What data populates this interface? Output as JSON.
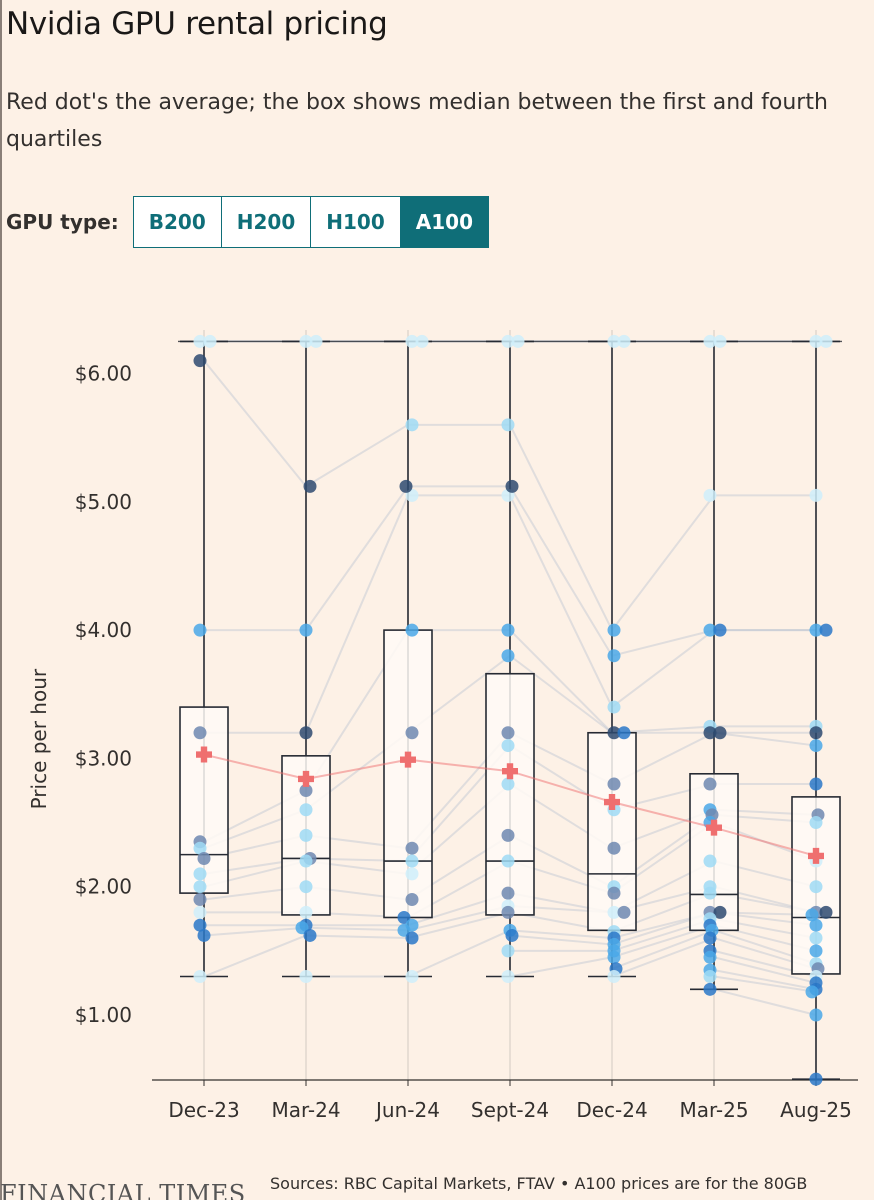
{
  "title": "Nvidia GPU rental pricing",
  "subtitle": "Red dot's the average; the box shows median between the first and fourth quartiles",
  "selector": {
    "label": "GPU type:",
    "options": [
      "B200",
      "H200",
      "H100",
      "A100"
    ],
    "active": "A100"
  },
  "colors": {
    "accent": "#0f6e78",
    "mean": "#ef6f6f",
    "dots": [
      "#cfeefa",
      "#9fdaf5",
      "#4aa8e8",
      "#2a78c8",
      "#6e88b0",
      "#2e4a70"
    ]
  },
  "chart_data": {
    "type": "box",
    "title": "Nvidia GPU rental pricing",
    "ylabel": "Price per hour",
    "xlabel": "",
    "ylim": [
      0.5,
      6.3
    ],
    "yticks": [
      1,
      2,
      3,
      4,
      5,
      6
    ],
    "ytick_labels": [
      "$1.00",
      "$2.00",
      "$3.00",
      "$4.00",
      "$5.00",
      "$6.00"
    ],
    "categories": [
      "Dec-23",
      "Mar-24",
      "Jun-24",
      "Sept-24",
      "Dec-24",
      "Mar-25",
      "Aug-25"
    ],
    "boxes": [
      {
        "min": 1.3,
        "q1": 1.95,
        "median": 2.25,
        "q3": 3.4,
        "max": 6.25,
        "mean": 3.03
      },
      {
        "min": 1.3,
        "q1": 1.78,
        "median": 2.22,
        "q3": 3.02,
        "max": 6.25,
        "mean": 2.84
      },
      {
        "min": 1.3,
        "q1": 1.76,
        "median": 2.2,
        "q3": 4.0,
        "max": 6.25,
        "mean": 2.99
      },
      {
        "min": 1.3,
        "q1": 1.78,
        "median": 2.2,
        "q3": 3.66,
        "max": 6.25,
        "mean": 2.9
      },
      {
        "min": 1.3,
        "q1": 1.66,
        "median": 2.1,
        "q3": 3.2,
        "max": 6.25,
        "mean": 2.66
      },
      {
        "min": 1.2,
        "q1": 1.66,
        "median": 1.94,
        "q3": 2.88,
        "max": 6.25,
        "mean": 2.46
      },
      {
        "min": 0.5,
        "q1": 1.32,
        "median": 1.76,
        "q3": 2.7,
        "max": 6.25,
        "mean": 2.24
      }
    ],
    "points": [
      [
        [
          6.25,
          0
        ],
        [
          6.25,
          0
        ],
        [
          6.1,
          5
        ],
        [
          4.0,
          2
        ],
        [
          3.2,
          4
        ],
        [
          2.35,
          4
        ],
        [
          2.3,
          1
        ],
        [
          2.22,
          4
        ],
        [
          2.1,
          1
        ],
        [
          2.0,
          1
        ],
        [
          1.9,
          4
        ],
        [
          1.8,
          0
        ],
        [
          1.7,
          3
        ],
        [
          1.62,
          3
        ],
        [
          1.3,
          0
        ]
      ],
      [
        [
          6.25,
          0
        ],
        [
          6.25,
          0
        ],
        [
          5.12,
          5
        ],
        [
          4.0,
          2
        ],
        [
          3.2,
          5
        ],
        [
          2.75,
          4
        ],
        [
          2.6,
          1
        ],
        [
          2.4,
          1
        ],
        [
          2.22,
          4
        ],
        [
          2.2,
          1
        ],
        [
          2.0,
          1
        ],
        [
          1.8,
          0
        ],
        [
          1.7,
          3
        ],
        [
          1.68,
          2
        ],
        [
          1.62,
          3
        ],
        [
          1.3,
          0
        ]
      ],
      [
        [
          6.25,
          0
        ],
        [
          6.25,
          0
        ],
        [
          5.6,
          1
        ],
        [
          5.05,
          0
        ],
        [
          5.12,
          5
        ],
        [
          4.0,
          2
        ],
        [
          3.2,
          4
        ],
        [
          2.3,
          4
        ],
        [
          2.2,
          1
        ],
        [
          2.1,
          0
        ],
        [
          1.9,
          4
        ],
        [
          1.76,
          3
        ],
        [
          1.7,
          2
        ],
        [
          1.66,
          2
        ],
        [
          1.6,
          3
        ],
        [
          1.3,
          0
        ]
      ],
      [
        [
          6.25,
          0
        ],
        [
          6.25,
          0
        ],
        [
          5.6,
          1
        ],
        [
          5.05,
          0
        ],
        [
          5.12,
          5
        ],
        [
          4.0,
          2
        ],
        [
          3.8,
          2
        ],
        [
          3.2,
          4
        ],
        [
          3.1,
          1
        ],
        [
          2.8,
          1
        ],
        [
          2.4,
          4
        ],
        [
          2.2,
          1
        ],
        [
          1.95,
          4
        ],
        [
          1.85,
          0
        ],
        [
          1.8,
          4
        ],
        [
          1.66,
          2
        ],
        [
          1.62,
          3
        ],
        [
          1.5,
          1
        ],
        [
          1.3,
          0
        ]
      ],
      [
        [
          6.25,
          0
        ],
        [
          6.25,
          0
        ],
        [
          4.0,
          2
        ],
        [
          3.8,
          2
        ],
        [
          3.4,
          1
        ],
        [
          3.2,
          5
        ],
        [
          3.2,
          3
        ],
        [
          2.8,
          4
        ],
        [
          2.6,
          1
        ],
        [
          2.3,
          4
        ],
        [
          2.0,
          1
        ],
        [
          1.95,
          4
        ],
        [
          1.8,
          0
        ],
        [
          1.8,
          4
        ],
        [
          1.65,
          1
        ],
        [
          1.6,
          3
        ],
        [
          1.55,
          2
        ],
        [
          1.5,
          2
        ],
        [
          1.45,
          2
        ],
        [
          1.36,
          3
        ],
        [
          1.3,
          0
        ]
      ],
      [
        [
          6.25,
          0
        ],
        [
          6.25,
          0
        ],
        [
          5.05,
          0
        ],
        [
          4.0,
          2
        ],
        [
          4.0,
          3
        ],
        [
          3.25,
          1
        ],
        [
          3.2,
          5
        ],
        [
          3.2,
          5
        ],
        [
          2.8,
          4
        ],
        [
          2.6,
          2
        ],
        [
          2.56,
          4
        ],
        [
          2.5,
          2
        ],
        [
          2.2,
          1
        ],
        [
          2.0,
          1
        ],
        [
          1.95,
          1
        ],
        [
          1.8,
          4
        ],
        [
          1.8,
          5
        ],
        [
          1.75,
          1
        ],
        [
          1.7,
          3
        ],
        [
          1.66,
          2
        ],
        [
          1.6,
          3
        ],
        [
          1.5,
          3
        ],
        [
          1.45,
          2
        ],
        [
          1.35,
          2
        ],
        [
          1.3,
          1
        ],
        [
          1.2,
          3
        ]
      ],
      [
        [
          6.25,
          0
        ],
        [
          6.25,
          0
        ],
        [
          5.05,
          0
        ],
        [
          4.0,
          2
        ],
        [
          4.0,
          3
        ],
        [
          3.25,
          1
        ],
        [
          3.2,
          5
        ],
        [
          3.1,
          2
        ],
        [
          2.8,
          3
        ],
        [
          2.56,
          4
        ],
        [
          2.5,
          1
        ],
        [
          2.2,
          0
        ],
        [
          2.0,
          1
        ],
        [
          1.8,
          4
        ],
        [
          1.8,
          5
        ],
        [
          1.78,
          2
        ],
        [
          1.7,
          2
        ],
        [
          1.6,
          1
        ],
        [
          1.5,
          2
        ],
        [
          1.4,
          1
        ],
        [
          1.36,
          4
        ],
        [
          1.3,
          0
        ],
        [
          1.25,
          3
        ],
        [
          1.2,
          3
        ],
        [
          1.18,
          2
        ],
        [
          1.0,
          2
        ],
        [
          0.5,
          3
        ]
      ]
    ]
  },
  "footer": {
    "logo": "FINANCIAL TIMES",
    "source": "Sources: RBC Capital Markets, FTAV • A100 prices are for the 80GB"
  }
}
